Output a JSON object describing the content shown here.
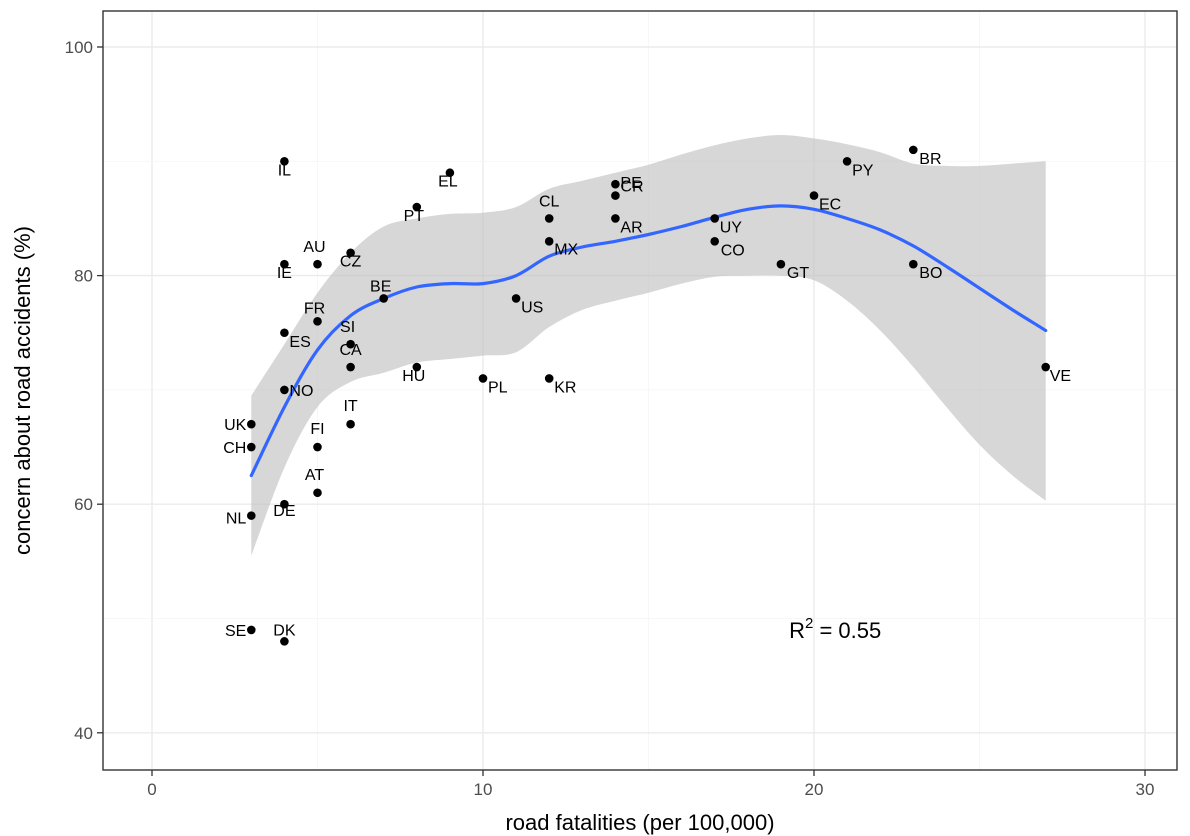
{
  "chart_data": {
    "type": "scatter",
    "xlabel": "road fatalities (per 100,000)",
    "ylabel": "concern about road accidents (%)",
    "xlim": [
      -1.5,
      31
    ],
    "ylim": [
      37,
      101
    ],
    "x_ticks": [
      0,
      10,
      20,
      30
    ],
    "y_ticks": [
      40,
      60,
      80,
      100
    ],
    "grid": true,
    "colors": {
      "point": "#000000",
      "smooth_line": "#3366ff",
      "confidence_band": "#bdbdbd",
      "grid_major": "#ebebeb",
      "grid_minor": "#f5f5f5",
      "panel_border": "#333333"
    },
    "annotation": {
      "base": "R",
      "sup": "2",
      "rest": " = 0.55",
      "x": 21,
      "y": 49
    },
    "points": [
      {
        "label": "IL",
        "x": 4,
        "y": 90
      },
      {
        "label": "EL",
        "x": 9,
        "y": 89
      },
      {
        "label": "PT",
        "x": 8,
        "y": 86
      },
      {
        "label": "AU",
        "x": 5,
        "y": 81
      },
      {
        "label": "IE",
        "x": 4,
        "y": 81
      },
      {
        "label": "CZ",
        "x": 6,
        "y": 82
      },
      {
        "label": "BE",
        "x": 7,
        "y": 78
      },
      {
        "label": "FR",
        "x": 5,
        "y": 76
      },
      {
        "label": "ES",
        "x": 4,
        "y": 75
      },
      {
        "label": "SI",
        "x": 6,
        "y": 74
      },
      {
        "label": "CA",
        "x": 6,
        "y": 72
      },
      {
        "label": "HU",
        "x": 8,
        "y": 72
      },
      {
        "label": "NO",
        "x": 4,
        "y": 70
      },
      {
        "label": "IT",
        "x": 6,
        "y": 67
      },
      {
        "label": "UK",
        "x": 3,
        "y": 67
      },
      {
        "label": "FI",
        "x": 5,
        "y": 65
      },
      {
        "label": "CH",
        "x": 3,
        "y": 65
      },
      {
        "label": "AT",
        "x": 5,
        "y": 61
      },
      {
        "label": "DE",
        "x": 4,
        "y": 60
      },
      {
        "label": "NL",
        "x": 3,
        "y": 59
      },
      {
        "label": "SE",
        "x": 3,
        "y": 49
      },
      {
        "label": "DK",
        "x": 4,
        "y": 48
      },
      {
        "label": "US",
        "x": 11,
        "y": 78
      },
      {
        "label": "PL",
        "x": 10,
        "y": 71
      },
      {
        "label": "KR",
        "x": 12,
        "y": 71
      },
      {
        "label": "CL",
        "x": 12,
        "y": 85
      },
      {
        "label": "MX",
        "x": 12,
        "y": 83
      },
      {
        "label": "PE",
        "x": 14,
        "y": 88
      },
      {
        "label": "CR",
        "x": 14,
        "y": 87
      },
      {
        "label": "AR",
        "x": 14,
        "y": 85
      },
      {
        "label": "UY",
        "x": 17,
        "y": 85
      },
      {
        "label": "CO",
        "x": 17,
        "y": 83
      },
      {
        "label": "GT",
        "x": 19,
        "y": 81
      },
      {
        "label": "EC",
        "x": 20,
        "y": 87
      },
      {
        "label": "PY",
        "x": 21,
        "y": 90
      },
      {
        "label": "BR",
        "x": 23,
        "y": 91
      },
      {
        "label": "BO",
        "x": 23,
        "y": 81
      },
      {
        "label": "VE",
        "x": 27,
        "y": 72
      }
    ],
    "smooth": {
      "x": [
        3,
        4,
        5,
        6,
        7,
        8,
        9,
        10,
        11,
        12,
        13,
        14,
        15,
        16,
        17,
        18,
        19,
        20,
        21,
        22,
        23,
        24,
        25,
        26,
        27
      ],
      "y": [
        62.5,
        68.5,
        73.5,
        76.5,
        78.0,
        79.0,
        79.3,
        79.3,
        80.0,
        81.7,
        82.5,
        83.0,
        83.6,
        84.3,
        85.1,
        85.8,
        86.1,
        85.8,
        85.0,
        84.0,
        82.6,
        80.8,
        78.9,
        77.0,
        75.2
      ],
      "lower": [
        55.5,
        63.2,
        68.5,
        70.7,
        71.5,
        72.4,
        72.7,
        73.0,
        73.3,
        75.5,
        77.0,
        77.8,
        78.5,
        79.3,
        79.9,
        80.0,
        80.0,
        79.6,
        77.8,
        75.2,
        72.0,
        68.5,
        65.2,
        62.5,
        60.3
      ],
      "upper": [
        69.5,
        74.0,
        78.5,
        82.0,
        84.3,
        85.0,
        85.4,
        85.5,
        86.0,
        87.6,
        88.3,
        89.0,
        89.7,
        90.6,
        91.4,
        92.0,
        92.3,
        92.0,
        91.5,
        90.8,
        89.8,
        89.6,
        89.6,
        89.8,
        90.0
      ]
    }
  }
}
